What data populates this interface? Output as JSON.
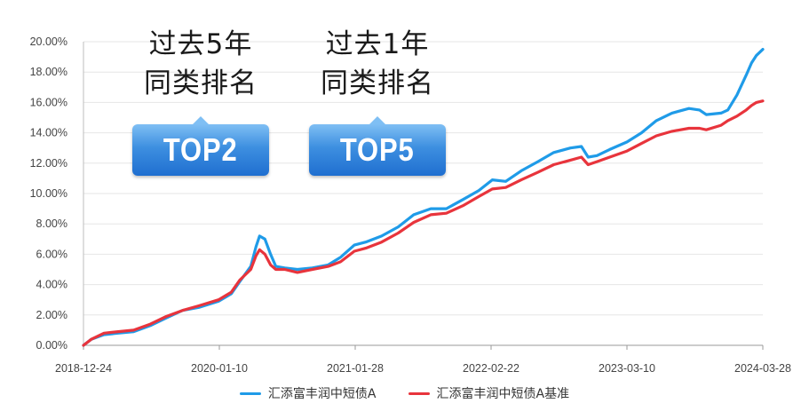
{
  "callouts": [
    {
      "title_line1": "过去5年",
      "title_line2": "同类排名",
      "badge": "TOP2"
    },
    {
      "title_line1": "过去1年",
      "title_line2": "同类排名",
      "badge": "TOP5"
    }
  ],
  "chart_data": {
    "type": "line",
    "ylim": [
      0,
      20
    ],
    "yticks": [
      0,
      2,
      4,
      6,
      8,
      10,
      12,
      14,
      16,
      18,
      20
    ],
    "ytick_labels": [
      "0.00%",
      "2.00%",
      "4.00%",
      "6.00%",
      "8.00%",
      "10.00%",
      "12.00%",
      "14.00%",
      "16.00%",
      "18.00%",
      "20.00%"
    ],
    "x_range": [
      "2018-12-24",
      "2024-03-28"
    ],
    "xtick_labels": [
      "2018-12-24",
      "2020-01-10",
      "2021-01-28",
      "2022-02-22",
      "2023-03-10",
      "2024-03-28"
    ],
    "grid": "horizontal",
    "legend_position": "bottom-center",
    "series": [
      {
        "name": "汇添富丰润中短债A",
        "color": "#1f9be8",
        "points": [
          [
            "2018-12-24",
            0.0
          ],
          [
            "2019-01-15",
            0.4
          ],
          [
            "2019-02-20",
            0.7
          ],
          [
            "2019-04-01",
            0.8
          ],
          [
            "2019-05-15",
            0.9
          ],
          [
            "2019-07-01",
            1.3
          ],
          [
            "2019-08-15",
            1.8
          ],
          [
            "2019-09-30",
            2.3
          ],
          [
            "2019-11-15",
            2.5
          ],
          [
            "2020-01-10",
            2.9
          ],
          [
            "2020-02-15",
            3.4
          ],
          [
            "2020-03-10",
            4.2
          ],
          [
            "2020-04-10",
            5.2
          ],
          [
            "2020-04-25",
            6.5
          ],
          [
            "2020-05-05",
            7.2
          ],
          [
            "2020-05-20",
            7.0
          ],
          [
            "2020-06-05",
            6.0
          ],
          [
            "2020-06-20",
            5.2
          ],
          [
            "2020-07-15",
            5.1
          ],
          [
            "2020-08-20",
            5.0
          ],
          [
            "2020-10-01",
            5.1
          ],
          [
            "2020-11-15",
            5.3
          ],
          [
            "2020-12-20",
            5.8
          ],
          [
            "2021-01-28",
            6.6
          ],
          [
            "2021-03-01",
            6.8
          ],
          [
            "2021-04-15",
            7.2
          ],
          [
            "2021-06-01",
            7.8
          ],
          [
            "2021-07-15",
            8.6
          ],
          [
            "2021-09-01",
            9.0
          ],
          [
            "2021-10-15",
            9.0
          ],
          [
            "2021-12-01",
            9.6
          ],
          [
            "2022-01-15",
            10.2
          ],
          [
            "2022-02-22",
            10.9
          ],
          [
            "2022-04-01",
            10.8
          ],
          [
            "2022-05-15",
            11.5
          ],
          [
            "2022-07-01",
            12.1
          ],
          [
            "2022-08-15",
            12.7
          ],
          [
            "2022-10-01",
            13.0
          ],
          [
            "2022-11-01",
            13.1
          ],
          [
            "2022-11-20",
            12.4
          ],
          [
            "2022-12-15",
            12.5
          ],
          [
            "2023-01-20",
            12.9
          ],
          [
            "2023-03-10",
            13.4
          ],
          [
            "2023-04-20",
            14.0
          ],
          [
            "2023-06-01",
            14.8
          ],
          [
            "2023-07-15",
            15.3
          ],
          [
            "2023-09-01",
            15.6
          ],
          [
            "2023-10-01",
            15.5
          ],
          [
            "2023-10-20",
            15.2
          ],
          [
            "2023-12-01",
            15.3
          ],
          [
            "2023-12-20",
            15.5
          ],
          [
            "2024-01-15",
            16.5
          ],
          [
            "2024-02-10",
            17.8
          ],
          [
            "2024-02-25",
            18.6
          ],
          [
            "2024-03-10",
            19.1
          ],
          [
            "2024-03-28",
            19.5
          ]
        ]
      },
      {
        "name": "汇添富丰润中短债A基准",
        "color": "#e8343c",
        "points": [
          [
            "2018-12-24",
            0.0
          ],
          [
            "2019-01-15",
            0.4
          ],
          [
            "2019-02-20",
            0.8
          ],
          [
            "2019-04-01",
            0.9
          ],
          [
            "2019-05-15",
            1.0
          ],
          [
            "2019-07-01",
            1.4
          ],
          [
            "2019-08-15",
            1.9
          ],
          [
            "2019-09-30",
            2.3
          ],
          [
            "2019-11-15",
            2.6
          ],
          [
            "2020-01-10",
            3.0
          ],
          [
            "2020-02-15",
            3.5
          ],
          [
            "2020-03-10",
            4.3
          ],
          [
            "2020-04-10",
            5.0
          ],
          [
            "2020-04-25",
            5.9
          ],
          [
            "2020-05-05",
            6.3
          ],
          [
            "2020-05-20",
            6.0
          ],
          [
            "2020-06-05",
            5.3
          ],
          [
            "2020-06-20",
            5.0
          ],
          [
            "2020-07-15",
            5.0
          ],
          [
            "2020-08-20",
            4.8
          ],
          [
            "2020-10-01",
            5.0
          ],
          [
            "2020-11-15",
            5.2
          ],
          [
            "2020-12-20",
            5.5
          ],
          [
            "2021-01-28",
            6.2
          ],
          [
            "2021-03-01",
            6.4
          ],
          [
            "2021-04-15",
            6.8
          ],
          [
            "2021-06-01",
            7.4
          ],
          [
            "2021-07-15",
            8.1
          ],
          [
            "2021-09-01",
            8.6
          ],
          [
            "2021-10-15",
            8.7
          ],
          [
            "2021-12-01",
            9.2
          ],
          [
            "2022-01-15",
            9.8
          ],
          [
            "2022-02-22",
            10.3
          ],
          [
            "2022-04-01",
            10.4
          ],
          [
            "2022-05-15",
            10.9
          ],
          [
            "2022-07-01",
            11.4
          ],
          [
            "2022-08-15",
            11.9
          ],
          [
            "2022-10-01",
            12.2
          ],
          [
            "2022-11-01",
            12.4
          ],
          [
            "2022-11-20",
            11.9
          ],
          [
            "2022-12-15",
            12.1
          ],
          [
            "2023-01-20",
            12.4
          ],
          [
            "2023-03-10",
            12.8
          ],
          [
            "2023-04-20",
            13.3
          ],
          [
            "2023-06-01",
            13.8
          ],
          [
            "2023-07-15",
            14.1
          ],
          [
            "2023-09-01",
            14.3
          ],
          [
            "2023-10-01",
            14.3
          ],
          [
            "2023-10-20",
            14.2
          ],
          [
            "2023-12-01",
            14.5
          ],
          [
            "2023-12-20",
            14.8
          ],
          [
            "2024-01-15",
            15.1
          ],
          [
            "2024-02-10",
            15.5
          ],
          [
            "2024-02-25",
            15.8
          ],
          [
            "2024-03-10",
            16.0
          ],
          [
            "2024-03-28",
            16.1
          ]
        ]
      }
    ]
  }
}
